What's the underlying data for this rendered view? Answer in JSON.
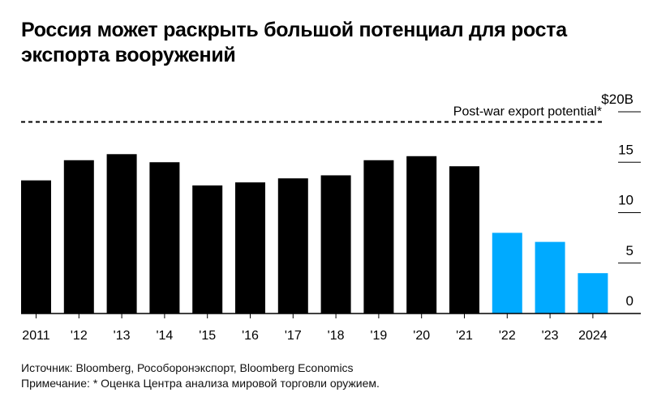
{
  "title": "Россия может раскрыть большой потенциал для роста экспорта вооружений",
  "chart_data": {
    "type": "bar",
    "title": "Россия может раскрыть большой потенциал для роста экспорта вооружений",
    "categories": [
      "2011",
      "'12",
      "'13",
      "'14",
      "'15",
      "'16",
      "'17",
      "'18",
      "'19",
      "'20",
      "'21",
      "'22",
      "'23",
      "2024"
    ],
    "values": [
      13.2,
      15.2,
      15.8,
      15.0,
      12.7,
      13.0,
      13.4,
      13.7,
      15.2,
      15.6,
      14.6,
      8.0,
      7.1,
      4.0
    ],
    "colors": [
      "#000000",
      "#000000",
      "#000000",
      "#000000",
      "#000000",
      "#000000",
      "#000000",
      "#000000",
      "#000000",
      "#000000",
      "#000000",
      "#00aaff",
      "#00aaff",
      "#00aaff"
    ],
    "ylim": [
      0,
      20
    ],
    "yticks": [
      0,
      5,
      10,
      15,
      20
    ],
    "ytick_labels": [
      "0",
      "5",
      "10",
      "15",
      "$20B"
    ],
    "reference_line": {
      "value": 19,
      "label": "Post-war export potential*"
    },
    "xlabel": "",
    "ylabel": ""
  },
  "footer": {
    "source": "Источник: Bloomberg, Рособоронэкспорт, Bloomberg Economics",
    "note": "Примечание: * Оценка Центра анализа мировой торговли оружием."
  }
}
